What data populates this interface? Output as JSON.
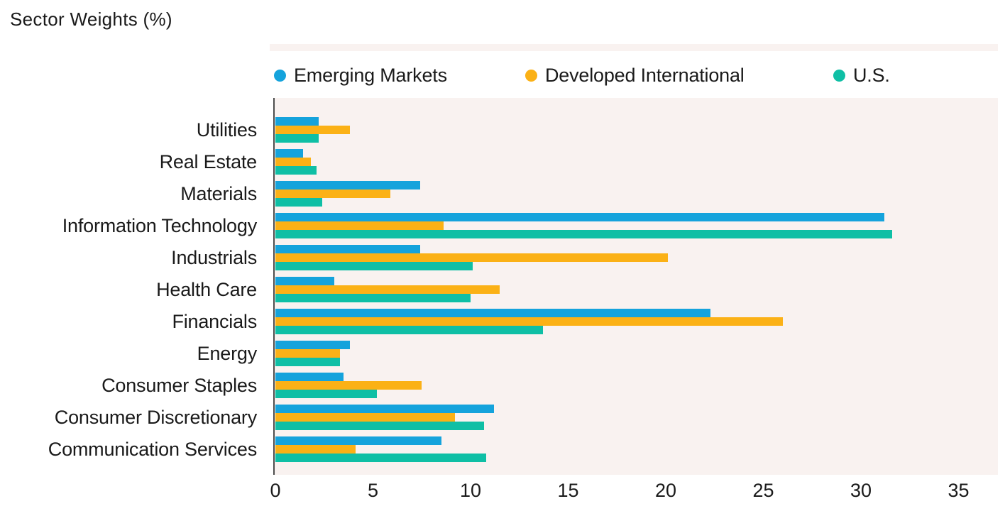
{
  "title": "Sector Weights (%)",
  "colors": {
    "emerging_markets": "#15A3DC",
    "developed_international": "#FBB116",
    "us": "#0FBFA5",
    "plot_background": "#F9F2F0",
    "axis_line": "#4d4d4d",
    "text": "#1a1a1a"
  },
  "chart_data": {
    "type": "bar",
    "orientation": "horizontal",
    "title": "Sector Weights (%)",
    "grid": false,
    "legend_position": "top",
    "xlim": [
      0,
      35
    ],
    "x_ticks": [
      0,
      5,
      10,
      15,
      20,
      25,
      30,
      35
    ],
    "categories": [
      "Utilities",
      "Real Estate",
      "Materials",
      "Information Technology",
      "Industrials",
      "Health Care",
      "Financials",
      "Energy",
      "Consumer Staples",
      "Consumer Discretionary",
      "Communication Services"
    ],
    "series": [
      {
        "name": "Emerging Markets",
        "color": "#15A3DC",
        "values": [
          2.2,
          1.4,
          7.4,
          31.2,
          7.4,
          3.0,
          22.3,
          3.8,
          3.5,
          11.2,
          8.5
        ]
      },
      {
        "name": "Developed International",
        "color": "#FBB116",
        "values": [
          3.8,
          1.8,
          5.9,
          8.6,
          20.1,
          11.5,
          26.0,
          3.3,
          7.5,
          9.2,
          4.1
        ]
      },
      {
        "name": "U.S.",
        "color": "#0FBFA5",
        "values": [
          2.2,
          2.1,
          2.4,
          31.6,
          10.1,
          10.0,
          13.7,
          3.3,
          5.2,
          10.7,
          10.8
        ]
      }
    ]
  }
}
